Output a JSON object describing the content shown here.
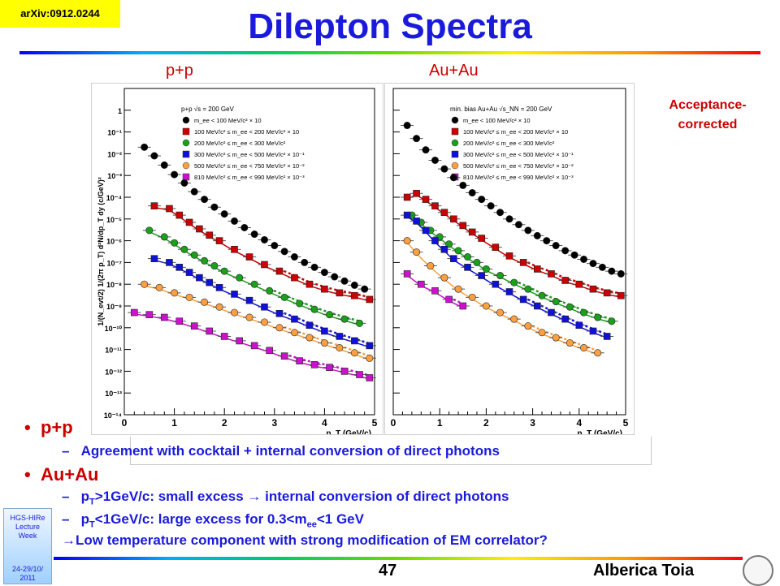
{
  "header": {
    "arxiv": "arXiv:0912.0244",
    "title": "Dilepton Spectra"
  },
  "systems": {
    "pp": "p+p",
    "auau": "Au+Au"
  },
  "annotation": {
    "line1": "Acceptance-",
    "line2": "corrected"
  },
  "bullets": {
    "pp": {
      "label": "p+p",
      "items": [
        {
          "dash": "–",
          "text": "Agreement with cocktail + internal conversion of direct photons"
        }
      ]
    },
    "auau": {
      "label": "Au+Au",
      "item1": {
        "dash": "–",
        "p": "p",
        "sub": "T",
        "rest": ">1GeV/c: small excess ",
        "arrow": "→",
        "tail": " internal conversion of direct photons"
      },
      "item2": {
        "dash": "–",
        "p": "p",
        "sub": "T",
        "rest": "<1GeV/c: large excess for 0.3<m",
        "sub2": "ee",
        "tail": "<1 GeV"
      },
      "item3": {
        "arrow": "→",
        "text": "Low temperature component with strong modification of EM correlator?"
      }
    }
  },
  "lecture": {
    "line1": "HGS-HIRe",
    "line2": "Lecture",
    "line3": "Week",
    "date": "24-29/10/",
    "year": "2011"
  },
  "footer": {
    "page": "47",
    "author": "Alberica Toia"
  },
  "colors": {
    "title": "#1a1adc",
    "red": "#cc0000",
    "black": "#000000",
    "green": "#1aa01a",
    "blue": "#1010dd",
    "orange": "#ffa040",
    "magenta": "#cc11cc"
  },
  "chart_data": {
    "type": "scatter",
    "yscale": "log",
    "xlim": [
      0,
      5
    ],
    "ylim": [
      1e-14,
      10
    ],
    "xlabel": "p_T (GeV/c)",
    "ylabel": "1/(N_evt/2) 1/(2π p_T) d²N/dp_T dy (c/GeV)²",
    "xticks": [
      "0",
      "1",
      "2",
      "3",
      "4",
      "5"
    ],
    "yticks": [
      "1",
      "10⁻¹",
      "10⁻²",
      "10⁻³",
      "10⁻⁴",
      "10⁻⁵",
      "10⁻⁶",
      "10⁻⁷",
      "10⁻⁸",
      "10⁻⁹",
      "10⁻¹⁰",
      "10⁻¹¹",
      "10⁻¹²",
      "10⁻¹³",
      "10⁻¹⁴"
    ],
    "panels": [
      {
        "name": "p+p",
        "header": "p+p √s = 200 GeV",
        "series": [
          {
            "name": "m_ee < 100 MeV/c² × 10",
            "color": "#000000",
            "marker": "circle",
            "x": [
              0.4,
              0.6,
              0.8,
              1.0,
              1.2,
              1.4,
              1.6,
              1.8,
              2.0,
              2.2,
              2.4,
              2.6,
              2.8,
              3.0,
              3.2,
              3.4,
              3.6,
              3.8,
              4.0,
              4.2,
              4.4,
              4.6,
              4.8
            ],
            "y": [
              0.02,
              0.008,
              0.003,
              0.0011,
              0.00045,
              0.00018,
              8e-05,
              3.5e-05,
              1.7e-05,
              8e-06,
              4e-06,
              2e-06,
              1.1e-06,
              6e-07,
              3.2e-07,
              1.8e-07,
              1e-07,
              6e-08,
              3.5e-08,
              2.2e-08,
              1.4e-08,
              9e-09,
              6e-09
            ]
          },
          {
            "name": "100 MeV/c² ≤ m_ee < 200 MeV/c² × 10",
            "color": "#cc0000",
            "marker": "square",
            "x": [
              0.6,
              0.9,
              1.1,
              1.3,
              1.5,
              1.7,
              1.9,
              2.2,
              2.5,
              2.8,
              3.1,
              3.4,
              3.7,
              4.0,
              4.3,
              4.6,
              4.9
            ],
            "y": [
              4e-05,
              3e-05,
              1.5e-05,
              7e-06,
              3.5e-06,
              1.8e-06,
              1e-06,
              4e-07,
              1.8e-07,
              8e-08,
              4e-08,
              2e-08,
              1e-08,
              6e-09,
              4e-09,
              3e-09,
              2e-09
            ]
          },
          {
            "name": "200 MeV/c² ≤ m_ee < 300 MeV/c²",
            "color": "#1aa01a",
            "marker": "circle",
            "x": [
              0.5,
              0.8,
              1.0,
              1.2,
              1.4,
              1.6,
              1.8,
              2.0,
              2.3,
              2.6,
              2.9,
              3.2,
              3.5,
              3.8,
              4.1,
              4.4,
              4.7
            ],
            "y": [
              3e-06,
              1.5e-06,
              8e-07,
              4e-07,
              2.2e-07,
              1.2e-07,
              7e-08,
              4e-08,
              2e-08,
              1e-08,
              5e-09,
              2.5e-09,
              1.3e-09,
              7e-10,
              4e-10,
              2.5e-10,
              1.6e-10
            ]
          },
          {
            "name": "300 MeV/c² ≤ m_ee < 500 MeV/c² × 10⁻¹",
            "color": "#1010dd",
            "marker": "square",
            "x": [
              0.6,
              0.9,
              1.1,
              1.3,
              1.5,
              1.7,
              1.9,
              2.2,
              2.5,
              2.8,
              3.1,
              3.4,
              3.7,
              4.0,
              4.3,
              4.6,
              4.9
            ],
            "y": [
              1.5e-07,
              1e-07,
              6e-08,
              3.5e-08,
              2e-08,
              1.2e-08,
              7e-09,
              3.5e-09,
              1.8e-09,
              9e-10,
              4.5e-10,
              2.5e-10,
              1.3e-10,
              7e-11,
              4e-11,
              2.5e-11,
              1.5e-11
            ]
          },
          {
            "name": "500 MeV/c² ≤ m_ee < 750 MeV/c² × 10⁻²",
            "color": "#ffa040",
            "marker": "circle",
            "x": [
              0.4,
              0.7,
              1.0,
              1.3,
              1.6,
              1.9,
              2.2,
              2.5,
              2.8,
              3.1,
              3.4,
              3.7,
              4.0,
              4.3,
              4.6,
              4.9
            ],
            "y": [
              1e-08,
              7e-09,
              4e-09,
              2.5e-09,
              1.5e-09,
              9e-10,
              5e-10,
              3e-10,
              1.8e-10,
              1e-10,
              6e-11,
              3.5e-11,
              2e-11,
              1.2e-11,
              7e-12,
              4e-12
            ]
          },
          {
            "name": "810 MeV/c² ≤ m_ee < 990 MeV/c² × 10⁻³",
            "color": "#cc11cc",
            "marker": "square",
            "x": [
              0.2,
              0.5,
              0.8,
              1.1,
              1.4,
              1.7,
              2.0,
              2.3,
              2.6,
              2.9,
              3.2,
              3.5,
              3.8,
              4.1,
              4.4,
              4.7,
              4.9
            ],
            "y": [
              5e-10,
              4e-10,
              3e-10,
              2e-10,
              1.2e-10,
              7e-11,
              4e-11,
              2.5e-11,
              1.5e-11,
              9e-12,
              5e-12,
              3e-12,
              2e-12,
              1.5e-12,
              1e-12,
              7e-13,
              5e-13
            ]
          }
        ]
      },
      {
        "name": "Au+Au",
        "header": "min. bias Au+Au √s_NN = 200 GeV",
        "series": [
          {
            "name": "m_ee < 100 MeV/c² × 10",
            "color": "#000000",
            "marker": "circle",
            "x": [
              0.3,
              0.5,
              0.7,
              0.9,
              1.1,
              1.3,
              1.5,
              1.7,
              1.9,
              2.1,
              2.3,
              2.5,
              2.7,
              2.9,
              3.1,
              3.3,
              3.5,
              3.7,
              3.9,
              4.1,
              4.3,
              4.5,
              4.7,
              4.9
            ],
            "y": [
              0.2,
              0.05,
              0.015,
              0.005,
              0.002,
              0.0008,
              0.00035,
              0.00016,
              8e-05,
              4e-05,
              2e-05,
              1e-05,
              5.5e-06,
              3e-06,
              1.7e-06,
              1e-06,
              6e-07,
              3.5e-07,
              2.2e-07,
              1.4e-07,
              9e-08,
              6e-08,
              4e-08,
              3e-08
            ]
          },
          {
            "name": "100 MeV/c² ≤ m_ee < 200 MeV/c² × 10",
            "color": "#cc0000",
            "marker": "square",
            "x": [
              0.3,
              0.5,
              0.7,
              0.9,
              1.1,
              1.3,
              1.5,
              1.7,
              1.9,
              2.2,
              2.5,
              2.8,
              3.1,
              3.4,
              3.7,
              4.0,
              4.3,
              4.6,
              4.9
            ],
            "y": [
              0.0001,
              0.00015,
              8e-05,
              4e-05,
              2e-05,
              1e-05,
              5e-06,
              2.5e-06,
              1.3e-06,
              5e-07,
              2e-07,
              1e-07,
              5e-08,
              3e-08,
              1.5e-08,
              1e-08,
              6e-09,
              4e-09,
              3e-09
            ]
          },
          {
            "name": "200 MeV/c² ≤ m_ee < 300 MeV/c²",
            "color": "#1aa01a",
            "marker": "circle",
            "x": [
              0.4,
              0.6,
              0.8,
              1.0,
              1.2,
              1.4,
              1.6,
              1.8,
              2.0,
              2.3,
              2.6,
              2.9,
              3.2,
              3.5,
              3.8,
              4.1,
              4.4,
              4.7
            ],
            "y": [
              1.5e-05,
              7e-06,
              3e-06,
              1.5e-06,
              7e-07,
              3.5e-07,
              1.8e-07,
              1e-07,
              5e-08,
              2.5e-08,
              1.2e-08,
              6e-09,
              3e-09,
              1.6e-09,
              9e-10,
              5e-10,
              3e-10,
              2e-10
            ]
          },
          {
            "name": "300 MeV/c² ≤ m_ee < 500 MeV/c² × 10⁻¹",
            "color": "#1010dd",
            "marker": "square",
            "x": [
              0.3,
              0.5,
              0.7,
              0.9,
              1.1,
              1.3,
              1.6,
              1.9,
              2.2,
              2.5,
              2.8,
              3.1,
              3.4,
              3.7,
              4.0,
              4.3,
              4.6
            ],
            "y": [
              1.5e-05,
              8e-06,
              3e-06,
              1e-06,
              4e-07,
              1.5e-07,
              6e-08,
              2.5e-08,
              1e-08,
              4.5e-09,
              2e-09,
              1e-09,
              5e-10,
              2.5e-10,
              1.3e-10,
              7e-11,
              4e-11
            ]
          },
          {
            "name": "500 MeV/c² ≤ m_ee < 750 MeV/c² × 10⁻²",
            "color": "#ffa040",
            "marker": "circle",
            "x": [
              0.3,
              0.5,
              0.8,
              1.1,
              1.4,
              1.7,
              2.0,
              2.3,
              2.6,
              2.9,
              3.2,
              3.5,
              3.8,
              4.1,
              4.4
            ],
            "y": [
              1e-06,
              3e-07,
              7e-08,
              2e-08,
              6e-09,
              2.5e-09,
              1e-09,
              5e-10,
              2.5e-10,
              1.2e-10,
              6e-11,
              3.5e-11,
              2e-11,
              1.2e-11,
              7e-12
            ]
          },
          {
            "name": "810 MeV/c² ≤ m_ee < 990 MeV/c² × 10⁻³",
            "color": "#cc11cc",
            "marker": "square",
            "x": [
              0.3,
              0.6,
              0.9,
              1.2,
              1.5
            ],
            "y": [
              3e-08,
              1e-08,
              5e-09,
              2e-09,
              1e-09
            ]
          }
        ]
      }
    ]
  }
}
